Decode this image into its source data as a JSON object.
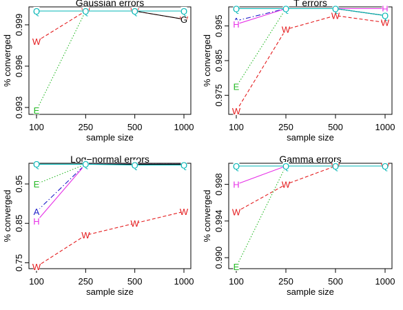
{
  "chart_data": [
    {
      "type": "line",
      "title": "Gaussian errors",
      "xlabel": "sample size",
      "ylabel": "% converged",
      "categories": [
        "100",
        "250",
        "500",
        "1000"
      ],
      "ylim": [
        0.9925,
        1.0003
      ],
      "yticks": [
        0.993,
        0.996,
        0.999
      ],
      "yticks_labels": [
        "0.993",
        "0.996",
        "0.999"
      ],
      "series": [
        {
          "label": "W",
          "color": "#e41a1c",
          "dash": "5,3",
          "values": [
            0.9978,
            1.0,
            1.0,
            0.9994
          ]
        },
        {
          "label": "E",
          "color": "#22b822",
          "dash": "1.5,2.5",
          "values": [
            0.9928,
            1.0,
            1.0,
            1.0
          ]
        },
        {
          "label": "A",
          "color": "#1c1cc8",
          "dash": "7,3,1.5,3",
          "values": [
            1.0,
            1.0,
            1.0,
            1.0
          ]
        },
        {
          "label": "H",
          "color": "#e62ee6",
          "dash": "",
          "values": [
            1.0,
            1.0,
            1.0,
            1.0
          ]
        },
        {
          "label": "G",
          "color": "#000000",
          "dash": "",
          "values": [
            1.0,
            1.0,
            1.0,
            0.9994
          ]
        },
        {
          "label": "Q",
          "color": "#00b5b5",
          "dash": "",
          "values": [
            1.0,
            1.0,
            1.0,
            1.0
          ]
        }
      ]
    },
    {
      "type": "line",
      "title": "T errors",
      "xlabel": "sample size",
      "ylabel": "% converged",
      "categories": [
        "100",
        "250",
        "500",
        "1000"
      ],
      "ylim": [
        0.9695,
        1.0005
      ],
      "yticks": [
        0.975,
        0.985,
        0.995
      ],
      "yticks_labels": [
        "0.975",
        "0.985",
        "0.995"
      ],
      "series": [
        {
          "label": "W",
          "color": "#e41a1c",
          "dash": "5,3",
          "values": [
            0.9705,
            0.994,
            0.998,
            0.996
          ]
        },
        {
          "label": "E",
          "color": "#22b822",
          "dash": "1.5,2.5",
          "values": [
            0.9775,
            1.0,
            1.0,
            1.0
          ]
        },
        {
          "label": "A",
          "color": "#1c1cc8",
          "dash": "7,3,1.5,3",
          "values": [
            0.9965,
            1.0,
            1.0,
            1.0
          ]
        },
        {
          "label": "H",
          "color": "#e62ee6",
          "dash": "",
          "values": [
            0.9955,
            1.0,
            1.0,
            1.0
          ]
        },
        {
          "label": "G",
          "color": "#000000",
          "dash": "",
          "values": [
            1.0,
            1.0,
            1.0,
            0.998
          ]
        },
        {
          "label": "Q",
          "color": "#00b5b5",
          "dash": "",
          "values": [
            1.0,
            1.0,
            1.0,
            0.998
          ]
        }
      ]
    },
    {
      "type": "line",
      "title": "Log−normal errors",
      "xlabel": "sample size",
      "ylabel": "% converged",
      "categories": [
        "100",
        "250",
        "500",
        "1000"
      ],
      "ylim": [
        0.735,
        1.0025
      ],
      "yticks": [
        0.75,
        0.85,
        0.95
      ],
      "yticks_labels": [
        "0.75",
        "0.85",
        "0.95"
      ],
      "series": [
        {
          "label": "W",
          "color": "#e41a1c",
          "dash": "5,3",
          "values": [
            0.74,
            0.82,
            0.85,
            0.88
          ]
        },
        {
          "label": "E",
          "color": "#22b822",
          "dash": "1.5,2.5",
          "values": [
            0.95,
            1.0,
            1.0,
            1.0
          ]
        },
        {
          "label": "A",
          "color": "#1c1cc8",
          "dash": "7,3,1.5,3",
          "values": [
            0.88,
            1.0,
            1.0,
            1.0
          ]
        },
        {
          "label": "H",
          "color": "#e62ee6",
          "dash": "",
          "values": [
            0.855,
            1.0,
            1.0,
            1.0
          ]
        },
        {
          "label": "G",
          "color": "#000000",
          "dash": "",
          "values": [
            1.0,
            1.0,
            1.0,
            1.0
          ]
        },
        {
          "label": "Q",
          "color": "#00b5b5",
          "dash": "",
          "values": [
            1.0,
            1.0,
            0.998,
            0.998
          ]
        }
      ]
    },
    {
      "type": "line",
      "title": "Gamma errors",
      "xlabel": "sample size",
      "ylabel": "% converged",
      "categories": [
        "100",
        "250",
        "500",
        "1000"
      ],
      "ylim": [
        0.9888,
        1.0003
      ],
      "yticks": [
        0.99,
        0.994,
        0.998
      ],
      "yticks_labels": [
        "0.990",
        "0.994",
        "0.998"
      ],
      "series": [
        {
          "label": "W",
          "color": "#e41a1c",
          "dash": "5,3",
          "values": [
            0.995,
            0.998,
            1.0,
            1.0
          ]
        },
        {
          "label": "E",
          "color": "#22b822",
          "dash": "1.5,2.5",
          "values": [
            0.989,
            1.0,
            1.0,
            1.0
          ]
        },
        {
          "label": "A",
          "color": "#1c1cc8",
          "dash": "7,3,1.5,3",
          "values": [
            1.0,
            1.0,
            1.0,
            1.0
          ]
        },
        {
          "label": "H",
          "color": "#e62ee6",
          "dash": "",
          "values": [
            0.998,
            1.0,
            1.0,
            1.0
          ]
        },
        {
          "label": "G",
          "color": "#000000",
          "dash": "",
          "values": [
            1.0,
            1.0,
            1.0,
            1.0
          ]
        },
        {
          "label": "Q",
          "color": "#00b5b5",
          "dash": "",
          "values": [
            1.0,
            1.0,
            1.0,
            1.0
          ]
        }
      ]
    }
  ]
}
